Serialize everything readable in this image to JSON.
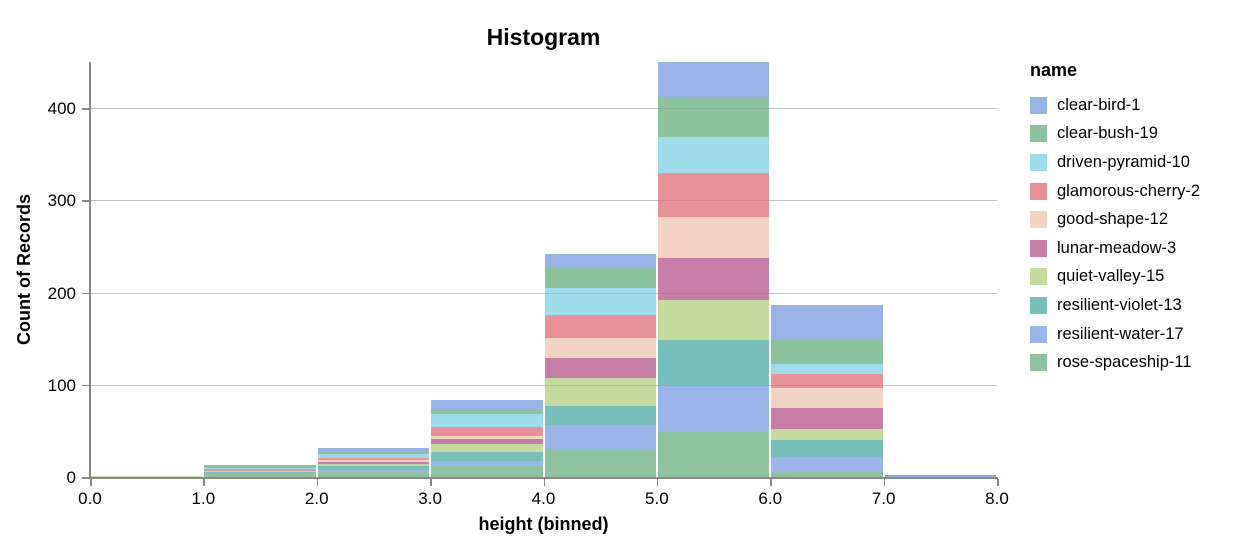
{
  "chart_data": {
    "type": "bar",
    "subtype": "stacked-histogram",
    "title": "Histogram",
    "xlabel": "height (binned)",
    "ylabel": "Count of Records",
    "legend_title": "name",
    "legend_position": "right",
    "grid": true,
    "x_domain": [
      0,
      8
    ],
    "y_domain": [
      0,
      450
    ],
    "x_tick_labels": [
      "0.0",
      "1.0",
      "2.0",
      "3.0",
      "4.0",
      "5.0",
      "6.0",
      "7.0",
      "8.0"
    ],
    "y_ticks": [
      0,
      100,
      200,
      300,
      400
    ],
    "axis_color": "#888888",
    "grid_color": "#dddddd",
    "series": [
      {
        "name": "clear-bird-1",
        "color": "#97b3e6"
      },
      {
        "name": "clear-bush-19",
        "color": "#8cc29e"
      },
      {
        "name": "driven-pyramid-10",
        "color": "#9edcea"
      },
      {
        "name": "glamorous-cherry-2",
        "color": "#e69298"
      },
      {
        "name": "good-shape-12",
        "color": "#f3d3c1"
      },
      {
        "name": "lunar-meadow-3",
        "color": "#c77ea6"
      },
      {
        "name": "quiet-valley-15",
        "color": "#c5db9d"
      },
      {
        "name": "resilient-violet-13",
        "color": "#77bfb8"
      },
      {
        "name": "resilient-water-17",
        "color": "#9ab6e9"
      },
      {
        "name": "rose-spaceship-11",
        "color": "#8ec2a0"
      }
    ],
    "stack_order_note": "values arrays follow series order; first series is the TOP segment of each stacked bar",
    "bins": [
      {
        "x0": 0,
        "x1": 1,
        "total": 1,
        "values": [
          0,
          0,
          0,
          0,
          0,
          0,
          1,
          0,
          0,
          0
        ]
      },
      {
        "x0": 1,
        "x1": 2,
        "total": 13,
        "values": [
          1,
          2,
          1,
          2,
          1,
          0,
          1,
          2,
          0,
          3
        ]
      },
      {
        "x0": 2,
        "x1": 3,
        "total": 31,
        "values": [
          4,
          2,
          4,
          3,
          2,
          2,
          2,
          4,
          3,
          5
        ]
      },
      {
        "x0": 3,
        "x1": 4,
        "total": 83,
        "values": [
          9,
          6,
          14,
          10,
          3,
          5,
          9,
          10,
          5,
          12
        ]
      },
      {
        "x0": 4,
        "x1": 5,
        "total": 242,
        "values": [
          15,
          22,
          29,
          25,
          22,
          22,
          30,
          21,
          26,
          30
        ]
      },
      {
        "x0": 5,
        "x1": 6,
        "total": 450,
        "values": [
          38,
          43,
          39,
          48,
          45,
          45,
          43,
          49,
          51,
          49
        ]
      },
      {
        "x0": 6,
        "x1": 7,
        "total": 186,
        "values": [
          37,
          26,
          11,
          16,
          21,
          23,
          12,
          18,
          17,
          5
        ]
      },
      {
        "x0": 7,
        "x1": 8,
        "total": 2,
        "values": [
          0,
          0,
          0,
          0,
          0,
          1,
          0,
          0,
          1,
          0
        ]
      }
    ]
  }
}
